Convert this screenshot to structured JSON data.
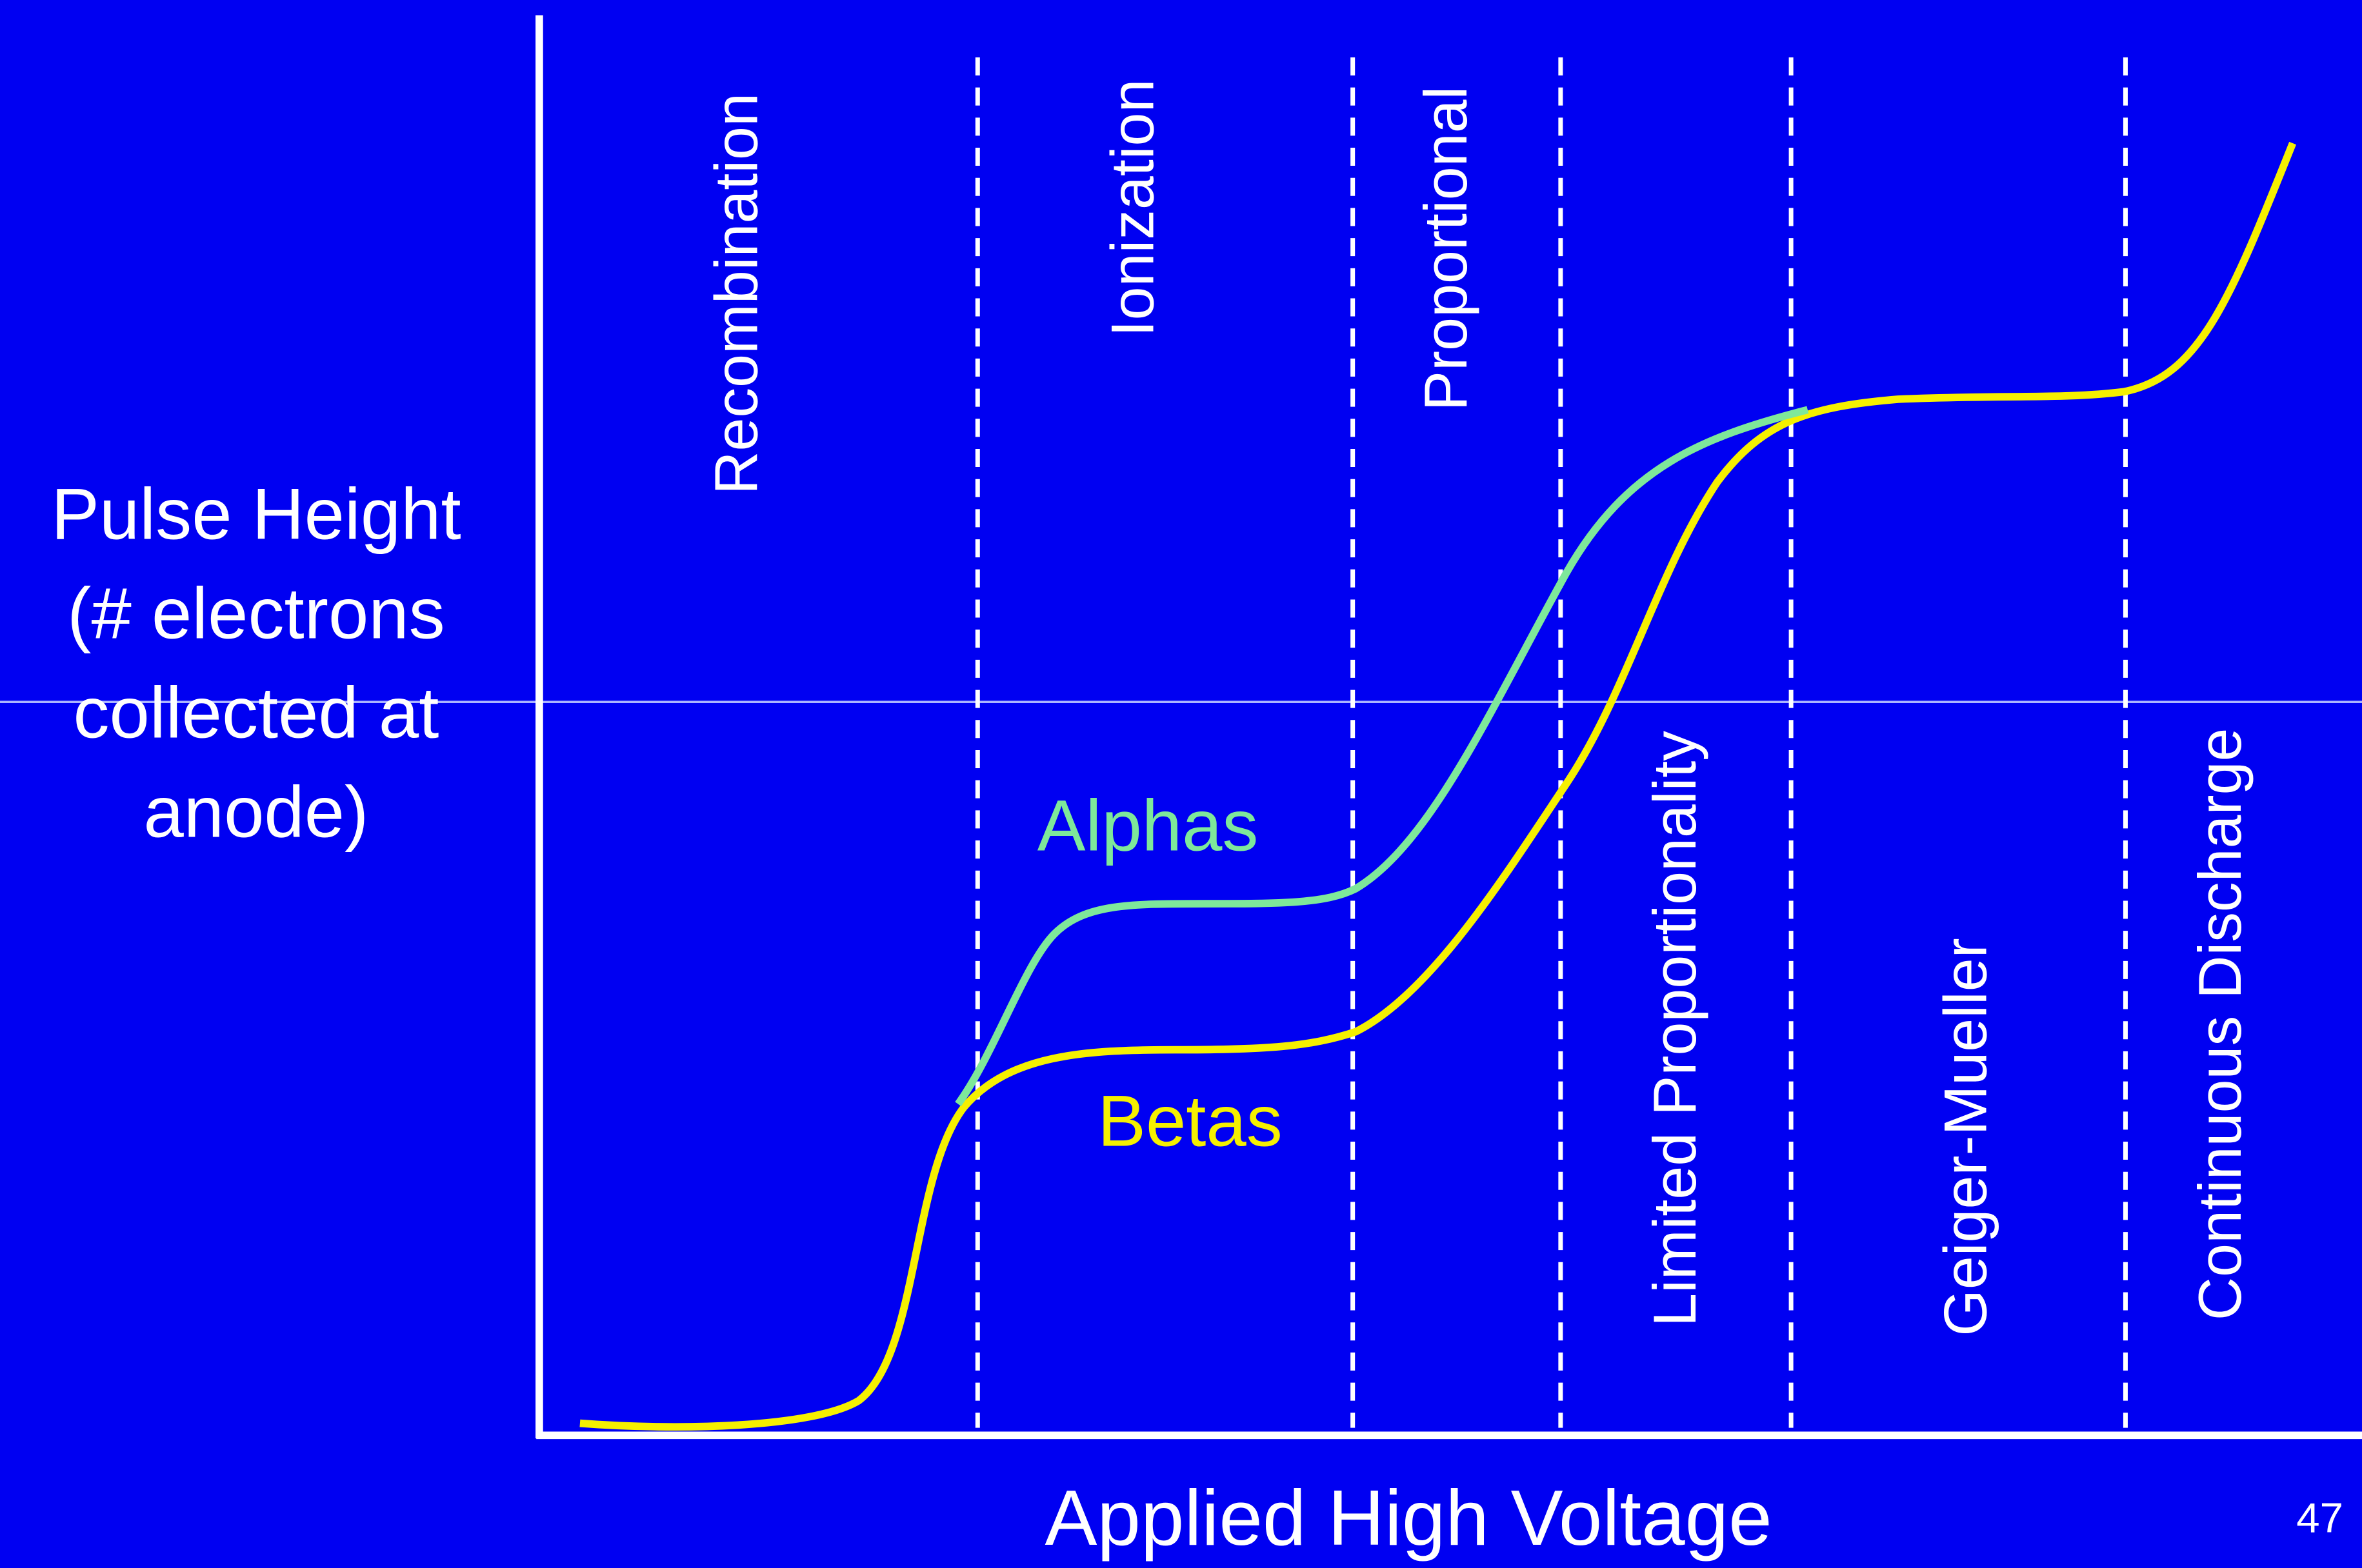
{
  "regions": [
    "Recombination",
    "Ionization",
    "Proportional",
    "Limited Proportionality",
    "Geiger-Mueller",
    "Continuous Discharge"
  ],
  "y_axis_label": [
    "Pulse Height",
    "(# electrons",
    "collected at",
    "anode)"
  ],
  "x_axis_label": "Applied High Voltage",
  "curve_labels": {
    "alphas": "Alphas",
    "betas": "Betas"
  },
  "page_number": "47"
}
